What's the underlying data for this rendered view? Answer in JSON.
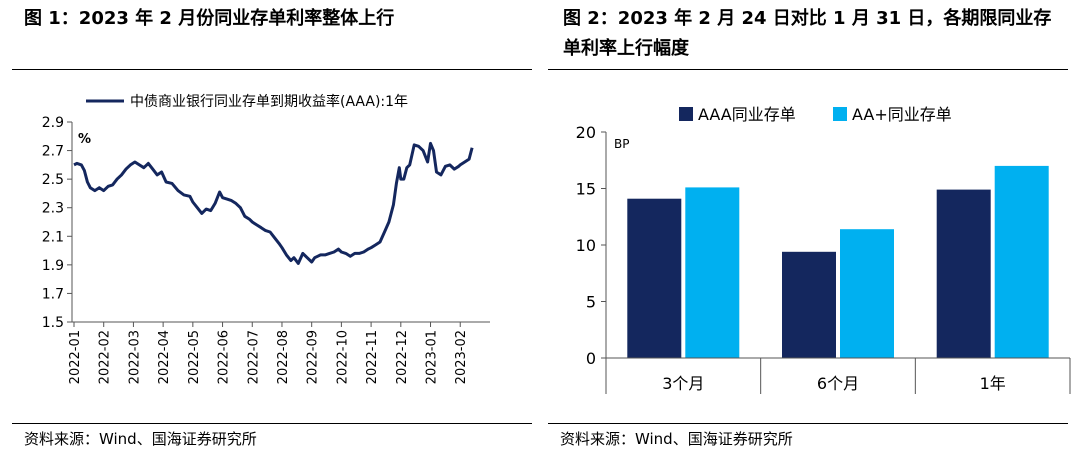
{
  "left": {
    "title": "图 1：2023 年 2 月份同业存单利率整体上行",
    "source": "资料来源：Wind、国海证券研究所"
  },
  "right": {
    "title": "图 2：2023 年 2 月 24 日对比 1 月 31 日，各期限同业存单利率上行幅度",
    "source": "资料来源：Wind、国海证券研究所"
  },
  "colors": {
    "navy": "#14275e",
    "cyan": "#00b0f0",
    "axis": "#555555"
  },
  "chart_data": [
    {
      "type": "line",
      "title": "",
      "legend": [
        "中债商业银行同业存单到期收益率(AAA):1年"
      ],
      "ylabel": "%",
      "ylim": [
        1.5,
        2.9
      ],
      "yticks": [
        "2.9",
        "2.7",
        "2.5",
        "2.3",
        "2.1",
        "1.9",
        "1.7",
        "1.5"
      ],
      "xticks": [
        "2022-01",
        "2022-02",
        "2022-03",
        "2022-04",
        "2022-05",
        "2022-06",
        "2022-07",
        "2022-08",
        "2022-09",
        "2022-10",
        "2022-11",
        "2022-12",
        "2023-01",
        "2023-02"
      ],
      "series": [
        {
          "name": "中债商业银行同业存单到期收益率(AAA):1年",
          "x": [
            0,
            0.1,
            0.25,
            0.35,
            0.45,
            0.55,
            0.7,
            0.85,
            1.0,
            1.15,
            1.3,
            1.45,
            1.6,
            1.75,
            1.9,
            2.05,
            2.2,
            2.35,
            2.5,
            2.65,
            2.8,
            2.95,
            3.1,
            3.3,
            3.5,
            3.7,
            3.9,
            4.0,
            4.15,
            4.3,
            4.45,
            4.6,
            4.75,
            4.9,
            5.0,
            5.15,
            5.3,
            5.45,
            5.6,
            5.75,
            5.9,
            6.0,
            6.15,
            6.3,
            6.45,
            6.6,
            6.75,
            6.9,
            7.0,
            7.15,
            7.3,
            7.4,
            7.55,
            7.7,
            7.85,
            8.0,
            8.1,
            8.2,
            8.3,
            8.45,
            8.6,
            8.75,
            8.9,
            9.0,
            9.15,
            9.3,
            9.45,
            9.6,
            9.75,
            9.9,
            10.0,
            10.15,
            10.3,
            10.45,
            10.6,
            10.75,
            10.85,
            10.95,
            11.0,
            11.1,
            11.2,
            11.3,
            11.45,
            11.6,
            11.75,
            11.9,
            12.0,
            12.1,
            12.2,
            12.35,
            12.5,
            12.65,
            12.8,
            12.95,
            13.0,
            13.15,
            13.3,
            13.4
          ],
          "values": [
            2.6,
            2.61,
            2.6,
            2.56,
            2.48,
            2.44,
            2.42,
            2.44,
            2.42,
            2.45,
            2.46,
            2.5,
            2.53,
            2.57,
            2.6,
            2.62,
            2.6,
            2.58,
            2.61,
            2.57,
            2.53,
            2.55,
            2.48,
            2.47,
            2.42,
            2.39,
            2.38,
            2.34,
            2.3,
            2.26,
            2.29,
            2.28,
            2.33,
            2.41,
            2.37,
            2.36,
            2.35,
            2.33,
            2.3,
            2.24,
            2.22,
            2.2,
            2.18,
            2.16,
            2.14,
            2.13,
            2.09,
            2.05,
            2.02,
            1.97,
            1.93,
            1.95,
            1.91,
            1.98,
            1.95,
            1.92,
            1.95,
            1.96,
            1.97,
            1.97,
            1.98,
            1.99,
            2.01,
            1.99,
            1.98,
            1.96,
            1.98,
            1.98,
            1.99,
            2.01,
            2.02,
            2.04,
            2.06,
            2.13,
            2.2,
            2.32,
            2.47,
            2.58,
            2.5,
            2.5,
            2.58,
            2.6,
            2.74,
            2.73,
            2.7,
            2.62,
            2.75,
            2.7,
            2.55,
            2.53,
            2.59,
            2.6,
            2.57,
            2.59,
            2.6,
            2.62,
            2.64,
            2.72
          ]
        }
      ]
    },
    {
      "type": "bar",
      "title": "",
      "ylabel": "BP",
      "ylim": [
        0,
        20
      ],
      "yticks": [
        "20",
        "15",
        "10",
        "5",
        "0"
      ],
      "categories": [
        "3个月",
        "6个月",
        "1年"
      ],
      "series": [
        {
          "name": "AAA同业存单",
          "values": [
            14.1,
            9.4,
            14.9
          ]
        },
        {
          "name": "AA+同业存单",
          "values": [
            15.1,
            11.4,
            17.0
          ]
        }
      ]
    }
  ]
}
